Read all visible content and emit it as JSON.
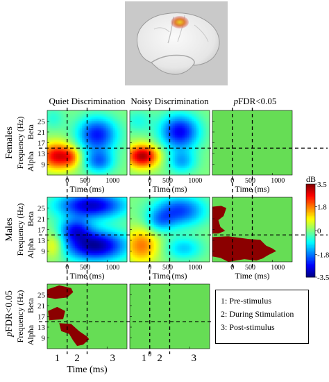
{
  "brain_image": {
    "description_icon": "brain-surface-icon",
    "highlight_color": "#e0a020"
  },
  "columns": [
    {
      "id": "quiet",
      "label": "Quiet Discrimination",
      "italic_prefix": ""
    },
    {
      "id": "noisy",
      "label": "Noisy Discrimination",
      "italic_prefix": ""
    },
    {
      "id": "pfdr",
      "label": "FDR<0.05",
      "italic_prefix": "p"
    }
  ],
  "rows": [
    {
      "id": "females",
      "label": "Females",
      "italic_prefix": ""
    },
    {
      "id": "males",
      "label": "Males",
      "italic_prefix": ""
    },
    {
      "id": "pfdr",
      "label": "FDR<0.05",
      "italic_prefix": "p"
    }
  ],
  "axes": {
    "ylabel": "Frequency (Hz)",
    "xlabel": "Time (ms)",
    "yticks": [
      "25",
      "21",
      "17",
      "13",
      "9"
    ],
    "xticks": [
      "0",
      "500",
      "1000"
    ],
    "band_labels": [
      "Beta",
      "Alpha"
    ],
    "period_numbers": [
      "1",
      "2",
      "3"
    ]
  },
  "colorbar": {
    "unit": "dB",
    "ticks": [
      "3.5",
      "1.8",
      "0",
      "-1.8",
      "-3.5"
    ],
    "range": [
      -3.5,
      3.5
    ]
  },
  "legend": {
    "items": [
      "1: Pre-stimulus",
      "2: During Stimulation",
      "3: Post-stimulus"
    ]
  },
  "chart_data": {
    "type": "heatmap",
    "x_range_ms": [
      -500,
      1500
    ],
    "y_range_hz": [
      5,
      29
    ],
    "markers": {
      "time_ms": [
        0,
        500
      ],
      "freq_hz": 15
    },
    "colors": {
      "significant": "#8b0000",
      "nonsignificant": "#66dd55"
    },
    "panels": [
      {
        "row": "females",
        "col": "quiet",
        "kind": "tf",
        "blobs": [
          {
            "t": -250,
            "f": 12,
            "st": 300,
            "sf": 3.5,
            "a": 2.8
          },
          {
            "t": 100,
            "f": 11.5,
            "st": 160,
            "sf": 2.5,
            "a": 1.0
          },
          {
            "t": 750,
            "f": 20,
            "st": 350,
            "sf": 4.5,
            "a": -2.5
          },
          {
            "t": 800,
            "f": 10,
            "st": 260,
            "sf": 3,
            "a": -1.8
          },
          {
            "t": -350,
            "f": 26,
            "st": 200,
            "sf": 3,
            "a": -0.6
          }
        ]
      },
      {
        "row": "females",
        "col": "noisy",
        "kind": "tf",
        "blobs": [
          {
            "t": -180,
            "f": 12,
            "st": 280,
            "sf": 3,
            "a": 3.2
          },
          {
            "t": 750,
            "f": 21,
            "st": 340,
            "sf": 4.5,
            "a": -2.7
          },
          {
            "t": 800,
            "f": 10,
            "st": 250,
            "sf": 3,
            "a": -1.4
          },
          {
            "t": -300,
            "f": 25,
            "st": 250,
            "sf": 3,
            "a": -0.7
          }
        ]
      },
      {
        "row": "females",
        "col": "pfdr",
        "kind": "sig",
        "regions": []
      },
      {
        "row": "males",
        "col": "quiet",
        "kind": "tf",
        "blobs": [
          {
            "t": 600,
            "f": 26,
            "st": 600,
            "sf": 3.5,
            "a": -3.0
          },
          {
            "t": 700,
            "f": 11,
            "st": 550,
            "sf": 4,
            "a": -3.3
          },
          {
            "t": -330,
            "f": 11,
            "st": 180,
            "sf": 3.5,
            "a": 1.2
          },
          {
            "t": 200,
            "f": 17,
            "st": 280,
            "sf": 3,
            "a": -2.0
          }
        ]
      },
      {
        "row": "males",
        "col": "noisy",
        "kind": "tf",
        "blobs": [
          {
            "t": -200,
            "f": 11,
            "st": 300,
            "sf": 4.5,
            "a": 1.8
          },
          {
            "t": 750,
            "f": 24,
            "st": 450,
            "sf": 4,
            "a": -2.2
          },
          {
            "t": 850,
            "f": 10,
            "st": 330,
            "sf": 3,
            "a": -1.2
          },
          {
            "t": 250,
            "f": 20,
            "st": 250,
            "sf": 3,
            "a": -1.2
          }
        ]
      },
      {
        "row": "males",
        "col": "pfdr",
        "kind": "sig",
        "regions": [
          [
            [
              -500,
              25.5
            ],
            [
              -280,
              25.8
            ],
            [
              -150,
              25
            ],
            [
              -220,
              22
            ],
            [
              -350,
              20.5
            ],
            [
              -300,
              18
            ],
            [
              -180,
              16.5
            ],
            [
              -350,
              15.5
            ],
            [
              -500,
              15.5
            ]
          ],
          [
            [
              -500,
              14.2
            ],
            [
              -100,
              14.5
            ],
            [
              150,
              14
            ],
            [
              400,
              13.5
            ],
            [
              700,
              13.2
            ],
            [
              850,
              11
            ],
            [
              1000,
              10
            ],
            [
              1100,
              9
            ],
            [
              900,
              7.5
            ],
            [
              750,
              6.2
            ],
            [
              600,
              5.5
            ],
            [
              300,
              6
            ],
            [
              -100,
              5
            ],
            [
              -300,
              6.5
            ],
            [
              -500,
              7
            ]
          ]
        ]
      },
      {
        "row": "pfdr",
        "col": "quiet",
        "kind": "sig",
        "regions": [
          [
            [
              -500,
              27
            ],
            [
              -200,
              28.5
            ],
            [
              100,
              27.5
            ],
            [
              150,
              26
            ],
            [
              0,
              24
            ],
            [
              -300,
              23.5
            ],
            [
              -500,
              24
            ]
          ],
          [
            [
              -450,
              15.5
            ],
            [
              -100,
              16
            ],
            [
              -50,
              19
            ],
            [
              -250,
              20.5
            ],
            [
              -480,
              19
            ]
          ],
          [
            [
              -200,
              14.5
            ],
            [
              100,
              14.2
            ],
            [
              300,
              11.5
            ],
            [
              500,
              9.5
            ],
            [
              550,
              8.5
            ],
            [
              400,
              6.5
            ],
            [
              250,
              6
            ],
            [
              150,
              8
            ],
            [
              50,
              10.5
            ],
            [
              -150,
              11.5
            ]
          ]
        ]
      },
      {
        "row": "pfdr",
        "col": "noisy",
        "kind": "sig",
        "regions": []
      }
    ]
  }
}
